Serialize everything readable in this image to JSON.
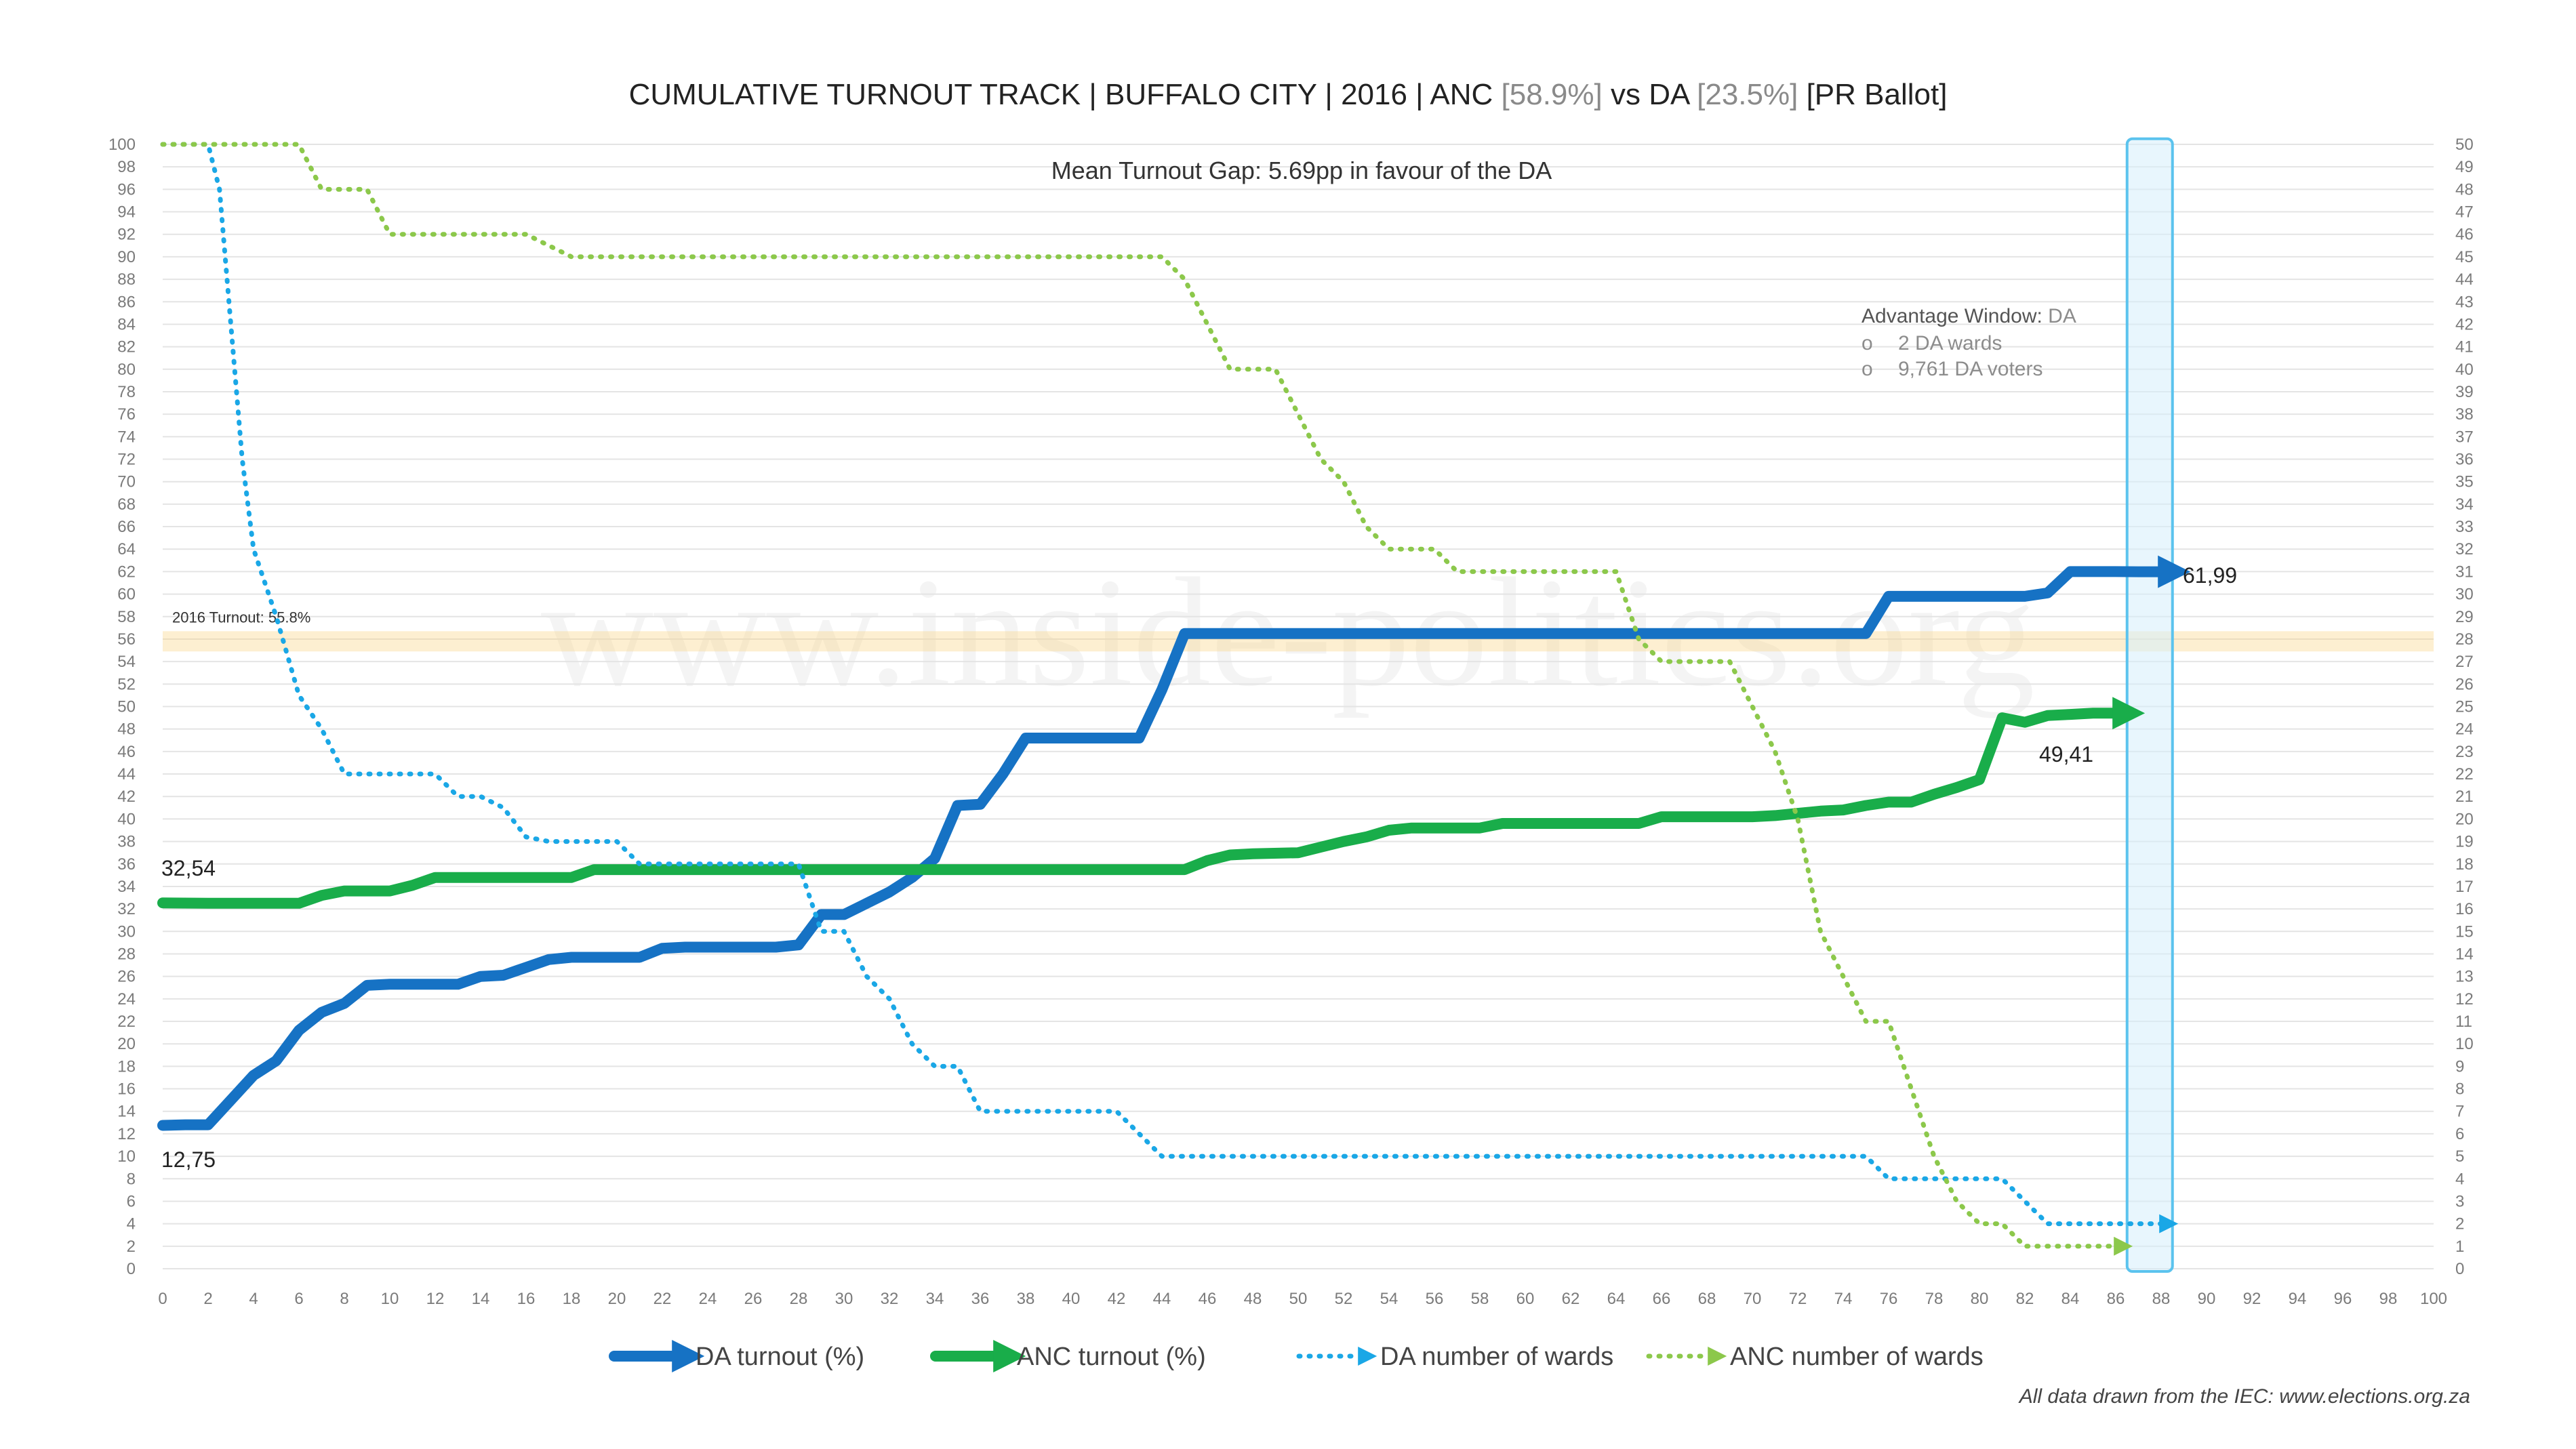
{
  "chart_data": {
    "type": "line",
    "title_parts": [
      {
        "text": "CUMULATIVE TURNOUT TRACK | BUFFALO CITY | 2016 | ANC ",
        "muted": false
      },
      {
        "text": "[58.9%]",
        "muted": true
      },
      {
        "text": " vs DA ",
        "muted": false
      },
      {
        "text": "[23.5%]",
        "muted": true
      },
      {
        "text": " [PR Ballot]",
        "muted": false
      }
    ],
    "subtitle": "Mean Turnout Gap: 5.69pp in favour of the DA",
    "reference_line": {
      "label": "2016 Turnout: 55.8%",
      "value": 55.8
    },
    "advantage_window": {
      "title": "Advantage Window:",
      "party": "DA",
      "bullet": "o",
      "lines": [
        "2 DA wards",
        "9,761 DA voters"
      ],
      "x_range": [
        86.5,
        88.5
      ]
    },
    "x_axis": {
      "min": 0,
      "max": 100,
      "step": 2
    },
    "y_left": {
      "min": 0,
      "max": 100,
      "step": 2
    },
    "y_right": {
      "min": 0,
      "max": 50,
      "step": 1
    },
    "series": [
      {
        "name": "DA turnout (%)",
        "axis": "left",
        "style": "solid",
        "color": "#1672c4",
        "start_label": "12,75",
        "end_label": "61,99",
        "points": [
          [
            0,
            12.75
          ],
          [
            1,
            12.8
          ],
          [
            2,
            12.8
          ],
          [
            3,
            15
          ],
          [
            4,
            17.2
          ],
          [
            5,
            18.5
          ],
          [
            6,
            21.2
          ],
          [
            7,
            22.8
          ],
          [
            8,
            23.6
          ],
          [
            9,
            25.2
          ],
          [
            10,
            25.3
          ],
          [
            11,
            25.3
          ],
          [
            12,
            25.3
          ],
          [
            13,
            25.3
          ],
          [
            14,
            26
          ],
          [
            15,
            26.1
          ],
          [
            16,
            26.8
          ],
          [
            17,
            27.5
          ],
          [
            18,
            27.7
          ],
          [
            19,
            27.7
          ],
          [
            20,
            27.7
          ],
          [
            21,
            27.7
          ],
          [
            22,
            28.5
          ],
          [
            23,
            28.6
          ],
          [
            24,
            28.6
          ],
          [
            25,
            28.6
          ],
          [
            26,
            28.6
          ],
          [
            27,
            28.6
          ],
          [
            28,
            28.8
          ],
          [
            29,
            31.5
          ],
          [
            30,
            31.5
          ],
          [
            31,
            32.5
          ],
          [
            32,
            33.5
          ],
          [
            33,
            34.8
          ],
          [
            34,
            36.5
          ],
          [
            35,
            41.2
          ],
          [
            36,
            41.3
          ],
          [
            37,
            44
          ],
          [
            38,
            47.2
          ],
          [
            39,
            47.2
          ],
          [
            40,
            47.2
          ],
          [
            41,
            47.2
          ],
          [
            42,
            47.2
          ],
          [
            43,
            47.2
          ],
          [
            44,
            51.5
          ],
          [
            45,
            56.5
          ],
          [
            46,
            56.5
          ],
          [
            50,
            56.5
          ],
          [
            55,
            56.5
          ],
          [
            60,
            56.5
          ],
          [
            65,
            56.5
          ],
          [
            70,
            56.5
          ],
          [
            74,
            56.5
          ],
          [
            75,
            56.5
          ],
          [
            76,
            59.8
          ],
          [
            77,
            59.8
          ],
          [
            78,
            59.8
          ],
          [
            80,
            59.8
          ],
          [
            82,
            59.8
          ],
          [
            83,
            60.1
          ],
          [
            84,
            62
          ],
          [
            85,
            62
          ],
          [
            86,
            62
          ],
          [
            87,
            61.99
          ],
          [
            88,
            61.99
          ]
        ]
      },
      {
        "name": "ANC turnout (%)",
        "axis": "left",
        "style": "solid",
        "color": "#19ad4a",
        "start_label": "32,54",
        "end_label": "49,41",
        "points": [
          [
            0,
            32.54
          ],
          [
            2,
            32.5
          ],
          [
            4,
            32.5
          ],
          [
            6,
            32.5
          ],
          [
            7,
            33.2
          ],
          [
            8,
            33.6
          ],
          [
            9,
            33.6
          ],
          [
            10,
            33.6
          ],
          [
            11,
            34.1
          ],
          [
            12,
            34.8
          ],
          [
            14,
            34.8
          ],
          [
            16,
            34.8
          ],
          [
            18,
            34.8
          ],
          [
            19,
            35.5
          ],
          [
            20,
            35.5
          ],
          [
            24,
            35.5
          ],
          [
            28,
            35.5
          ],
          [
            32,
            35.5
          ],
          [
            36,
            35.5
          ],
          [
            40,
            35.5
          ],
          [
            44,
            35.5
          ],
          [
            45,
            35.5
          ],
          [
            46,
            36.3
          ],
          [
            47,
            36.8
          ],
          [
            48,
            36.9
          ],
          [
            50,
            37
          ],
          [
            51,
            37.5
          ],
          [
            52,
            38
          ],
          [
            53,
            38.4
          ],
          [
            54,
            39
          ],
          [
            55,
            39.2
          ],
          [
            56,
            39.2
          ],
          [
            58,
            39.2
          ],
          [
            59,
            39.6
          ],
          [
            60,
            39.6
          ],
          [
            62,
            39.6
          ],
          [
            64,
            39.6
          ],
          [
            65,
            39.6
          ],
          [
            66,
            40.2
          ],
          [
            67,
            40.2
          ],
          [
            70,
            40.2
          ],
          [
            71,
            40.3
          ],
          [
            72,
            40.5
          ],
          [
            73,
            40.7
          ],
          [
            74,
            40.8
          ],
          [
            75,
            41.2
          ],
          [
            76,
            41.5
          ],
          [
            77,
            41.5
          ],
          [
            78,
            42.2
          ],
          [
            79,
            42.8
          ],
          [
            80,
            43.5
          ],
          [
            81,
            49
          ],
          [
            82,
            48.6
          ],
          [
            83,
            49.2
          ],
          [
            84,
            49.3
          ],
          [
            85,
            49.41
          ],
          [
            86,
            49.41
          ]
        ]
      },
      {
        "name": "DA number of wards",
        "axis": "right",
        "style": "dotted",
        "color": "#1aa7e6",
        "points": [
          [
            0,
            50
          ],
          [
            1,
            50
          ],
          [
            2,
            50
          ],
          [
            2.5,
            48
          ],
          [
            3,
            42
          ],
          [
            3.5,
            36
          ],
          [
            4,
            32
          ],
          [
            5,
            29
          ],
          [
            6,
            25.5
          ],
          [
            7,
            24
          ],
          [
            8,
            22
          ],
          [
            9,
            22
          ],
          [
            12,
            22
          ],
          [
            13,
            21
          ],
          [
            14,
            21
          ],
          [
            15,
            20.5
          ],
          [
            16,
            19.2
          ],
          [
            17,
            19
          ],
          [
            19,
            19
          ],
          [
            20,
            19
          ],
          [
            21,
            18
          ],
          [
            22,
            18
          ],
          [
            28,
            18
          ],
          [
            29,
            15
          ],
          [
            30,
            15
          ],
          [
            31,
            13
          ],
          [
            32,
            12
          ],
          [
            33,
            10
          ],
          [
            34,
            9
          ],
          [
            35,
            9
          ],
          [
            36,
            7
          ],
          [
            37,
            7
          ],
          [
            40,
            7
          ],
          [
            42,
            7
          ],
          [
            43,
            6
          ],
          [
            44,
            5
          ],
          [
            45,
            5
          ],
          [
            50,
            5
          ],
          [
            55,
            5
          ],
          [
            60,
            5
          ],
          [
            65,
            5
          ],
          [
            70,
            5
          ],
          [
            74,
            5
          ],
          [
            75,
            5
          ],
          [
            76,
            4
          ],
          [
            77,
            4
          ],
          [
            80,
            4
          ],
          [
            81,
            4
          ],
          [
            82,
            3
          ],
          [
            83,
            2
          ],
          [
            84,
            2
          ],
          [
            86,
            2
          ],
          [
            87,
            2
          ],
          [
            88,
            2
          ]
        ]
      },
      {
        "name": "ANC number of wards",
        "axis": "right",
        "style": "dotted",
        "color": "#8cc84b",
        "points": [
          [
            0,
            50
          ],
          [
            2,
            50
          ],
          [
            4,
            50
          ],
          [
            6,
            50
          ],
          [
            7,
            48
          ],
          [
            8,
            48
          ],
          [
            9,
            48
          ],
          [
            10,
            46
          ],
          [
            11,
            46
          ],
          [
            12,
            46
          ],
          [
            14,
            46
          ],
          [
            16,
            46
          ],
          [
            18,
            45
          ],
          [
            20,
            45
          ],
          [
            24,
            45
          ],
          [
            28,
            45
          ],
          [
            32,
            45
          ],
          [
            36,
            45
          ],
          [
            40,
            45
          ],
          [
            44,
            45
          ],
          [
            45,
            44
          ],
          [
            46,
            42
          ],
          [
            47,
            40
          ],
          [
            48,
            40
          ],
          [
            49,
            40
          ],
          [
            50,
            38
          ],
          [
            51,
            36
          ],
          [
            52,
            35
          ],
          [
            53,
            33
          ],
          [
            54,
            32
          ],
          [
            55,
            32
          ],
          [
            56,
            32
          ],
          [
            57,
            31
          ],
          [
            58,
            31
          ],
          [
            60,
            31
          ],
          [
            62,
            31
          ],
          [
            64,
            31
          ],
          [
            65,
            28
          ],
          [
            66,
            27
          ],
          [
            67,
            27
          ],
          [
            68,
            27
          ],
          [
            69,
            27
          ],
          [
            70,
            25
          ],
          [
            71,
            23
          ],
          [
            72,
            20
          ],
          [
            73,
            15
          ],
          [
            74,
            13
          ],
          [
            75,
            11
          ],
          [
            76,
            11
          ],
          [
            77,
            8
          ],
          [
            78,
            5
          ],
          [
            79,
            3
          ],
          [
            80,
            2
          ],
          [
            81,
            2
          ],
          [
            82,
            1
          ],
          [
            83,
            1
          ],
          [
            84,
            1
          ],
          [
            85,
            1
          ],
          [
            86,
            1
          ]
        ]
      }
    ],
    "watermark": "www.inside-politics.org",
    "source_note": "All data drawn from the IEC: www.elections.org.za"
  }
}
